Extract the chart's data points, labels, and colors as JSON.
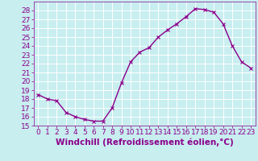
{
  "x": [
    0,
    1,
    2,
    3,
    4,
    5,
    6,
    7,
    8,
    9,
    10,
    11,
    12,
    13,
    14,
    15,
    16,
    17,
    18,
    19,
    20,
    21,
    22,
    23
  ],
  "y": [
    18.5,
    18.0,
    17.8,
    16.5,
    16.0,
    15.7,
    15.5,
    15.5,
    17.0,
    19.8,
    22.2,
    23.3,
    23.8,
    25.0,
    25.8,
    26.5,
    27.3,
    28.2,
    28.1,
    27.8,
    26.5,
    24.0,
    22.2,
    21.5
  ],
  "line_color": "#8B008B",
  "marker": "x",
  "marker_color": "#8B008B",
  "bg_color": "#c8eef0",
  "grid_color": "#b0dde0",
  "xlabel": "Windchill (Refroidissement éolien,°C)",
  "xlabel_color": "#8B008B",
  "ylim": [
    15,
    29
  ],
  "xlim": [
    -0.5,
    23.5
  ],
  "yticks": [
    15,
    16,
    17,
    18,
    19,
    20,
    21,
    22,
    23,
    24,
    25,
    26,
    27,
    28
  ],
  "xticks": [
    0,
    1,
    2,
    3,
    4,
    5,
    6,
    7,
    8,
    9,
    10,
    11,
    12,
    13,
    14,
    15,
    16,
    17,
    18,
    19,
    20,
    21,
    22,
    23
  ],
  "tick_color": "#8B008B",
  "tick_label_fontsize": 6.5,
  "xlabel_fontsize": 7.5,
  "line_width": 1.0,
  "marker_size": 3.5
}
